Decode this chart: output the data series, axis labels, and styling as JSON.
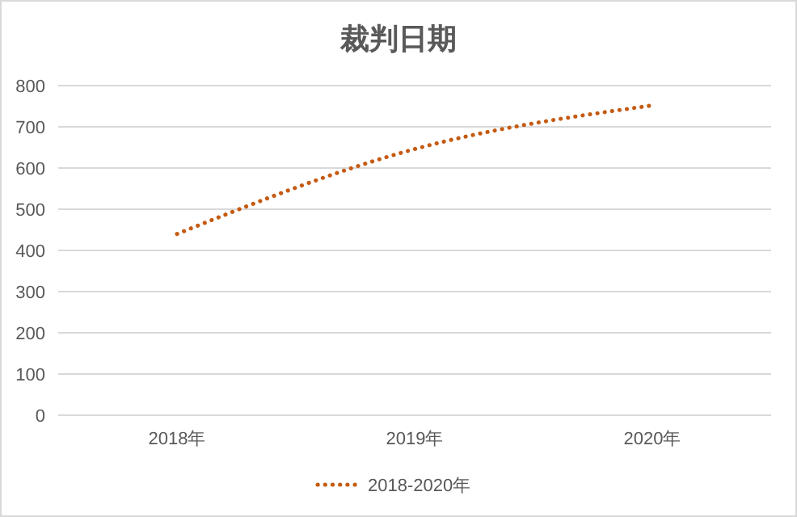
{
  "chart_data": {
    "type": "line",
    "title": "裁判日期",
    "categories": [
      "2018年",
      "2019年",
      "2020年"
    ],
    "series": [
      {
        "name": "2018-2020年",
        "color": "#c55a11",
        "values": [
          440,
          646,
          752
        ]
      }
    ],
    "ylim": [
      0,
      800
    ],
    "yticks": [
      0,
      100,
      200,
      300,
      400,
      500,
      600,
      700,
      800
    ],
    "grid": "y",
    "legend": "bottom",
    "marker": "none",
    "line_style": "dotted"
  }
}
